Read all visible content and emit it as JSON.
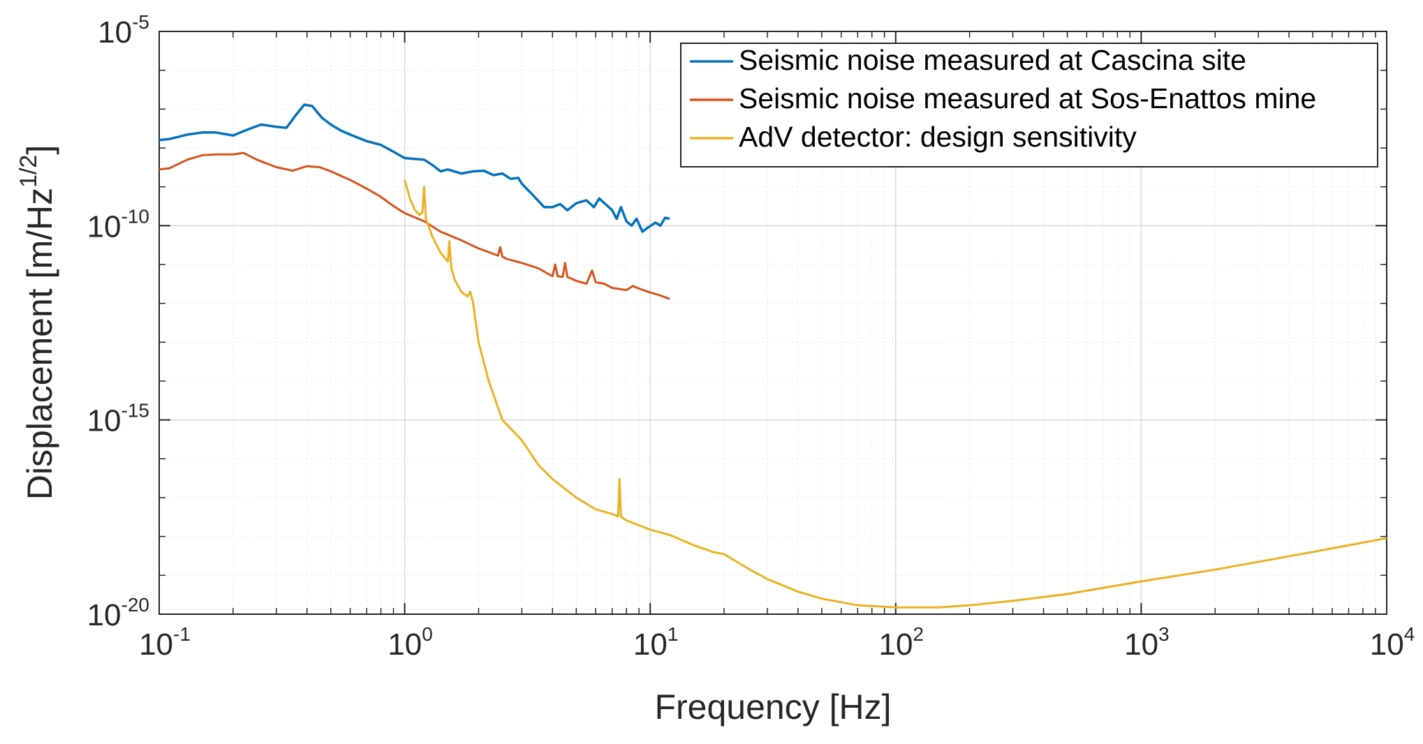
{
  "chart_data": {
    "type": "line",
    "title": "",
    "xlabel": "Frequency [Hz]",
    "ylabel": {
      "text": "Displacement [m/Hz",
      "superscript": "1/2",
      "suffix": "]"
    },
    "xscale": "log",
    "yscale": "log",
    "xlim": [
      0.1,
      10000
    ],
    "ylim": [
      1e-20,
      1e-05
    ],
    "grid": true,
    "legend_position": "top-right",
    "x_ticks": [
      {
        "base": "10",
        "exp": "-1",
        "value": 0.1
      },
      {
        "base": "10",
        "exp": "0",
        "value": 1
      },
      {
        "base": "10",
        "exp": "1",
        "value": 10
      },
      {
        "base": "10",
        "exp": "2",
        "value": 100
      },
      {
        "base": "10",
        "exp": "3",
        "value": 1000
      },
      {
        "base": "10",
        "exp": "4",
        "value": 10000
      }
    ],
    "y_ticks": [
      {
        "base": "10",
        "exp": "-5",
        "value": 1e-05
      },
      {
        "base": "10",
        "exp": "-10",
        "value": 1e-10
      },
      {
        "base": "10",
        "exp": "-15",
        "value": 1e-15
      },
      {
        "base": "10",
        "exp": "-20",
        "value": 1e-20
      }
    ],
    "series": [
      {
        "name": "Seismic noise measured at Cascina site",
        "color": "#0072BD",
        "x": [
          0.1,
          0.11,
          0.13,
          0.15,
          0.17,
          0.2,
          0.23,
          0.26,
          0.3,
          0.33,
          0.36,
          0.39,
          0.42,
          0.46,
          0.5,
          0.55,
          0.6,
          0.7,
          0.8,
          0.9,
          1.0,
          1.1,
          1.2,
          1.3,
          1.4,
          1.5,
          1.7,
          1.9,
          2.1,
          2.3,
          2.5,
          2.7,
          2.9,
          3.0,
          3.3,
          3.7,
          4.0,
          4.3,
          4.6,
          5.0,
          5.5,
          5.9,
          6.2,
          6.6,
          7.0,
          7.3,
          7.6,
          8.0,
          8.4,
          8.8,
          9.3,
          9.8,
          10.5,
          11.0,
          11.5,
          12.0
        ],
        "y": [
          1.6e-08,
          1.7e-08,
          2.2e-08,
          2.5e-08,
          2.5e-08,
          2.1e-08,
          3e-08,
          4e-08,
          3.5e-08,
          3.3e-08,
          7e-08,
          1.3e-07,
          1.2e-07,
          6e-08,
          4e-08,
          2.8e-08,
          2.2e-08,
          1.5e-08,
          1.2e-08,
          8e-09,
          5.5e-09,
          5.2e-09,
          5e-09,
          3.6e-09,
          2.5e-09,
          2.8e-09,
          2.2e-09,
          2.5e-09,
          2.6e-09,
          2e-09,
          2.2e-09,
          1.6e-09,
          1.7e-09,
          1.2e-09,
          6.5e-10,
          3e-10,
          3e-10,
          3.6e-10,
          2.5e-10,
          3.8e-10,
          4.5e-10,
          3e-10,
          5e-10,
          3.5e-10,
          2.5e-10,
          1.5e-10,
          3e-10,
          1.3e-10,
          1e-10,
          1.5e-10,
          7e-11,
          9e-11,
          1.2e-10,
          1e-10,
          1.6e-10,
          1.5e-10
        ]
      },
      {
        "name": "Seismic noise measured at Sos-Enattos mine",
        "color": "#D95319",
        "x": [
          0.1,
          0.11,
          0.13,
          0.15,
          0.17,
          0.2,
          0.22,
          0.25,
          0.3,
          0.35,
          0.4,
          0.45,
          0.5,
          0.6,
          0.7,
          0.8,
          0.9,
          1.0,
          1.2,
          1.4,
          1.7,
          2.0,
          2.4,
          2.45,
          2.5,
          2.6,
          3.0,
          3.5,
          4.0,
          4.1,
          4.2,
          4.4,
          4.5,
          4.6,
          5.0,
          5.5,
          5.8,
          6.0,
          6.5,
          7.0,
          8.0,
          8.5,
          9.0,
          10.0,
          11.0,
          12.0
        ],
        "y": [
          2.8e-09,
          3e-09,
          5e-09,
          6.5e-09,
          6.8e-09,
          6.8e-09,
          7.5e-09,
          5e-09,
          3.2e-09,
          2.6e-09,
          3.4e-09,
          3.2e-09,
          2.5e-09,
          1.5e-09,
          9e-10,
          5.5e-10,
          3.2e-10,
          2.1e-10,
          1.3e-10,
          7e-11,
          4.2e-11,
          2.6e-11,
          1.7e-11,
          2.8e-11,
          1.6e-11,
          1.4e-11,
          1.1e-11,
          8e-12,
          5e-12,
          1e-11,
          5e-12,
          4.8e-12,
          1.1e-11,
          4.8e-12,
          3.8e-12,
          3.2e-12,
          7e-12,
          3.5e-12,
          3.2e-12,
          2.5e-12,
          2.2e-12,
          2.8e-12,
          2.4e-12,
          1.9e-12,
          1.6e-12,
          1.3e-12
        ]
      },
      {
        "name": "AdV detector: design sensitivity",
        "color": "#EDB120",
        "x": [
          1.0,
          1.05,
          1.1,
          1.15,
          1.18,
          1.2,
          1.22,
          1.3,
          1.4,
          1.5,
          1.52,
          1.55,
          1.6,
          1.7,
          1.8,
          1.85,
          1.9,
          2.0,
          2.2,
          2.5,
          3.0,
          3.5,
          4.0,
          5.0,
          6.0,
          7.0,
          7.4,
          7.5,
          7.6,
          8.0,
          10.0,
          12.0,
          15.0,
          18.0,
          20.0,
          25.0,
          30.0,
          40.0,
          50.0,
          70.0,
          100.0,
          150.0,
          200.0,
          300.0,
          500.0,
          1000.0,
          2000.0,
          5000.0,
          10000.0
        ],
        "y": [
          1.5e-09,
          5e-10,
          2.5e-10,
          1.9e-10,
          2.2e-10,
          1e-09,
          1.5e-10,
          5e-11,
          2e-11,
          1.2e-11,
          4e-11,
          8e-12,
          4e-12,
          2e-12,
          1.5e-12,
          2e-12,
          1e-12,
          1e-13,
          1e-14,
          1e-15,
          3e-16,
          7e-17,
          3e-17,
          1e-17,
          5e-18,
          3.8e-18,
          3.3e-18,
          3e-17,
          3.2e-18,
          2.6e-18,
          1.5e-18,
          1.1e-18,
          6e-19,
          4e-19,
          3.5e-19,
          1.5e-19,
          8e-20,
          3.8e-20,
          2.5e-20,
          1.7e-20,
          1.5e-20,
          1.5e-20,
          1.7e-20,
          2.2e-20,
          3.3e-20,
          7e-20,
          1.4e-19,
          4e-19,
          9e-19
        ]
      }
    ]
  }
}
